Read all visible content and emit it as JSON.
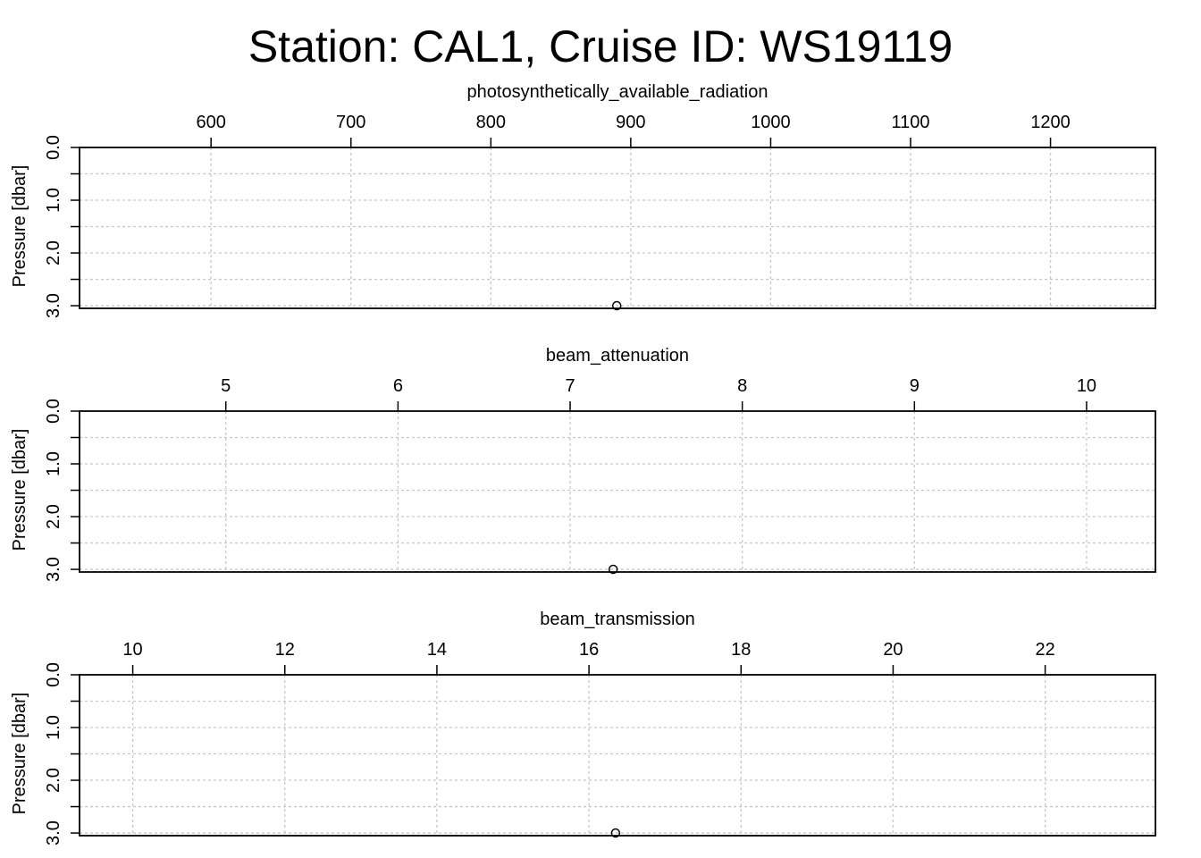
{
  "title": "Station: CAL1, Cruise ID: WS19119",
  "chart_data": [
    {
      "type": "scatter",
      "xlabel": "photosynthetically_available_radiation",
      "ylabel": "Pressure [dbar]",
      "xlim": [
        506,
        1275
      ],
      "ylim": [
        0.0,
        3.05
      ],
      "x_reversed": false,
      "y_reversed": true,
      "xticks": [
        600,
        700,
        800,
        900,
        1000,
        1100,
        1200
      ],
      "yticks": [
        0.0,
        0.5,
        1.0,
        1.5,
        2.0,
        2.5,
        3.0
      ],
      "ytick_labels": [
        "0.0",
        "1.0",
        "2.0",
        "3.0"
      ],
      "ytick_label_values": [
        0.0,
        1.0,
        2.0,
        3.0
      ],
      "grid": true,
      "points": [
        {
          "x": 890,
          "y": 3.0
        }
      ]
    },
    {
      "type": "scatter",
      "xlabel": "beam_attenuation",
      "ylabel": "Pressure [dbar]",
      "xlim": [
        4.15,
        10.4
      ],
      "ylim": [
        0.0,
        3.05
      ],
      "y_reversed": true,
      "xticks": [
        5,
        6,
        7,
        8,
        9,
        10
      ],
      "yticks": [
        0.0,
        0.5,
        1.0,
        1.5,
        2.0,
        2.5,
        3.0
      ],
      "ytick_labels": [
        "0.0",
        "1.0",
        "2.0",
        "3.0"
      ],
      "ytick_label_values": [
        0.0,
        1.0,
        2.0,
        3.0
      ],
      "grid": true,
      "points": [
        {
          "x": 7.25,
          "y": 3.0
        }
      ]
    },
    {
      "type": "scatter",
      "xlabel": "beam_transmission",
      "ylabel": "Pressure [dbar]",
      "xlim": [
        9.3,
        23.45
      ],
      "ylim": [
        0.0,
        3.05
      ],
      "y_reversed": true,
      "xticks": [
        10,
        12,
        14,
        16,
        18,
        20,
        22
      ],
      "yticks": [
        0.0,
        0.5,
        1.0,
        1.5,
        2.0,
        2.5,
        3.0
      ],
      "ytick_labels": [
        "0.0",
        "1.0",
        "2.0",
        "3.0"
      ],
      "ytick_label_values": [
        0.0,
        1.0,
        2.0,
        3.0
      ],
      "grid": true,
      "points": [
        {
          "x": 16.35,
          "y": 3.0
        }
      ]
    }
  ]
}
